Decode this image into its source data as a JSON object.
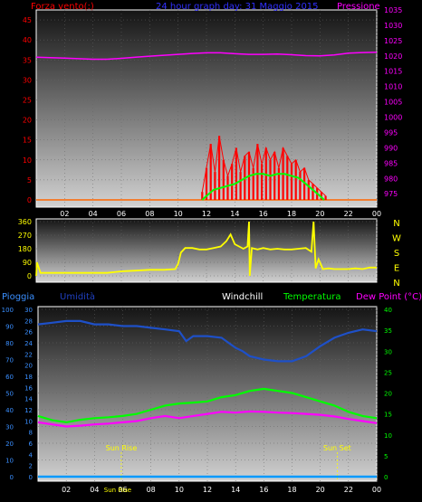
{
  "chart_data": [
    {
      "type": "line",
      "title": "24 hour graph day: 31 Maggio 2015",
      "left_label": "Forza vento(:)",
      "right_label": "Pressione",
      "x_ticks": [
        "02",
        "04",
        "06",
        "08",
        "10",
        "12",
        "14",
        "16",
        "18",
        "20",
        "22",
        "00"
      ],
      "left_ticks": [
        "0",
        "5",
        "10",
        "15",
        "20",
        "25",
        "30",
        "35",
        "40",
        "45"
      ],
      "right_ticks": [
        "975",
        "980",
        "985",
        "990",
        "995",
        "1000",
        "1005",
        "1010",
        "1015",
        "1020",
        "1025",
        "1030",
        "1035"
      ],
      "ylim_left": [
        0,
        47.5
      ],
      "ylim_right": [
        973,
        1035
      ],
      "colors": {
        "pressure": "#ff00ff",
        "gust": "#ff0000",
        "wind": "#00ff00",
        "baseline": "#ff6600"
      },
      "series": [
        {
          "key": "pressure",
          "axis": "right",
          "x": [
            0,
            1,
            2,
            3,
            4,
            5,
            6,
            7,
            8,
            9,
            10,
            11,
            12,
            13,
            14,
            15,
            16,
            17,
            18,
            19,
            20,
            21,
            22,
            23,
            24
          ],
          "values": [
            1019.6,
            1019.4,
            1019.3,
            1019.1,
            1018.9,
            1018.9,
            1019.2,
            1019.6,
            1019.9,
            1020.2,
            1020.5,
            1020.8,
            1021.0,
            1021.0,
            1020.7,
            1020.5,
            1020.5,
            1020.6,
            1020.4,
            1020.1,
            1020.0,
            1020.3,
            1020.9,
            1021.1,
            1021.2
          ]
        },
        {
          "key": "gust",
          "axis": "left",
          "x": [
            11.7,
            12.0,
            12.3,
            12.6,
            12.9,
            13.2,
            13.5,
            13.8,
            14.1,
            14.4,
            14.7,
            15.0,
            15.3,
            15.6,
            15.9,
            16.2,
            16.5,
            16.8,
            17.1,
            17.4,
            17.7,
            18.0,
            18.3,
            18.6,
            18.9,
            19.2,
            19.5,
            19.8,
            20.1,
            20.4
          ],
          "values": [
            2,
            8,
            14,
            7,
            16,
            10,
            6,
            9,
            13,
            7,
            11,
            12,
            8,
            14,
            9,
            13,
            10,
            12,
            8,
            13,
            11,
            9,
            10,
            7,
            8,
            5,
            4,
            3,
            2,
            1
          ]
        },
        {
          "key": "wind",
          "axis": "left",
          "x": [
            11.7,
            12.0,
            12.5,
            13.0,
            13.5,
            14.0,
            14.5,
            15.0,
            15.5,
            16.0,
            16.5,
            17.0,
            17.5,
            18.0,
            18.5,
            19.0,
            19.5,
            20.0,
            20.3
          ],
          "values": [
            0,
            1,
            2.5,
            3,
            3.5,
            4,
            5,
            6,
            6.5,
            6.5,
            6,
            6.5,
            6.5,
            6,
            5.5,
            4,
            2.5,
            1,
            0
          ]
        }
      ]
    },
    {
      "type": "line",
      "left_ticks": [
        "0",
        "90",
        "180",
        "270",
        "360"
      ],
      "right_labels": [
        "N",
        "W",
        "S",
        "E",
        "N"
      ],
      "x_ticks": [
        "02",
        "04",
        "06",
        "08",
        "10",
        "12",
        "14",
        "16",
        "18",
        "20",
        "22",
        "00"
      ],
      "ylim": [
        0,
        360
      ],
      "colors": {
        "direction": "#ffff00"
      },
      "series": [
        {
          "key": "direction",
          "x": [
            0,
            0.05,
            0.3,
            1,
            2,
            3,
            4,
            5,
            6,
            7,
            8,
            9,
            9.8,
            10,
            10.2,
            10.5,
            11,
            11.5,
            12,
            12.5,
            13,
            13.4,
            13.7,
            14,
            14.3,
            14.6,
            14.9,
            15.0,
            15.05,
            15.2,
            15.6,
            16,
            16.5,
            17,
            17.5,
            18,
            18.5,
            19,
            19.4,
            19.55,
            19.7,
            19.9,
            20.2,
            20.6,
            21,
            21.5,
            22,
            22.5,
            23,
            23.5,
            24
          ],
          "values": [
            0,
            90,
            20,
            20,
            20,
            20,
            20,
            20,
            30,
            35,
            40,
            40,
            45,
            80,
            155,
            185,
            185,
            175,
            175,
            185,
            195,
            230,
            275,
            210,
            195,
            180,
            195,
            360,
            0,
            185,
            175,
            185,
            175,
            180,
            175,
            175,
            180,
            185,
            160,
            360,
            50,
            110,
            45,
            50,
            45,
            45,
            45,
            50,
            45,
            55,
            55
          ]
        }
      ]
    },
    {
      "type": "line",
      "top_labels": [
        "Pioggia",
        "Umidità",
        "Windchill",
        "Temperatura",
        "Dew Point (°C)"
      ],
      "x_ticks": [
        "02",
        "04",
        "06",
        "08",
        "10",
        "12",
        "14",
        "16",
        "18",
        "20",
        "22",
        "00"
      ],
      "y1_ticks": [
        "0",
        "10",
        "20",
        "30",
        "40",
        "50",
        "60",
        "70",
        "80",
        "90",
        "100"
      ],
      "y2_ticks": [
        "0",
        "2",
        "4",
        "6",
        "8",
        "10",
        "12",
        "14",
        "16",
        "18",
        "20",
        "22",
        "24",
        "26",
        "28",
        "30"
      ],
      "y3_ticks": [
        "0",
        "5",
        "10",
        "15",
        "20",
        "25",
        "30",
        "35",
        "40"
      ],
      "ylim_pct": [
        0,
        100
      ],
      "ylim_temp": [
        0,
        40
      ],
      "annotations": [
        "Sun Rise",
        "Sun Set"
      ],
      "sun_rise_hour": 5.9,
      "sun_set_hour": 21.2,
      "colors": {
        "humidity": "#1e50c8",
        "temperature": "#00ff00",
        "dewpoint": "#ff00ff",
        "rain": "#0099ff",
        "sun": "#ffff00"
      },
      "series": [
        {
          "key": "humidity",
          "axis": "pct",
          "x": [
            0,
            1,
            2,
            3,
            4,
            5,
            6,
            7,
            8,
            9,
            10,
            10.5,
            11,
            12,
            13,
            13.5,
            14,
            14.5,
            15,
            16,
            17,
            18,
            19,
            20,
            21,
            22,
            23,
            24
          ],
          "values": [
            91,
            92,
            93,
            93,
            91,
            91,
            90,
            90,
            89,
            88,
            87,
            81,
            84,
            84,
            83,
            80,
            77,
            75,
            72,
            70,
            69,
            69,
            72,
            78,
            83,
            86,
            88,
            87
          ]
        },
        {
          "key": "temperature",
          "axis": "temp",
          "x": [
            0,
            1,
            2,
            3,
            4,
            5,
            6,
            7,
            8,
            9,
            10,
            11,
            12,
            13,
            14,
            15,
            16,
            17,
            18,
            19,
            20,
            21,
            22,
            23,
            24
          ],
          "values": [
            14.5,
            13.5,
            13.0,
            13.6,
            14.0,
            14.2,
            14.5,
            15.0,
            16.0,
            17.0,
            17.5,
            17.7,
            18.0,
            19.0,
            19.5,
            20.5,
            21.0,
            20.5,
            20.0,
            19.0,
            18.0,
            17.0,
            15.5,
            14.5,
            14.0
          ]
        },
        {
          "key": "dewpoint",
          "axis": "temp",
          "x": [
            0,
            1,
            2,
            3,
            4,
            5,
            6,
            7,
            8,
            9,
            10,
            11,
            12,
            13,
            14,
            15,
            16,
            17,
            18,
            19,
            20,
            21,
            22,
            23,
            24
          ],
          "values": [
            13.0,
            12.5,
            12.0,
            12.2,
            12.5,
            12.7,
            13.0,
            13.3,
            14.0,
            14.5,
            14.0,
            14.5,
            15.0,
            15.5,
            15.3,
            15.6,
            15.5,
            15.3,
            15.2,
            15.0,
            14.8,
            14.4,
            13.8,
            13.3,
            12.8
          ]
        },
        {
          "key": "rain",
          "axis": "pct",
          "x": [
            0,
            24
          ],
          "values": [
            0,
            0
          ]
        }
      ]
    }
  ]
}
